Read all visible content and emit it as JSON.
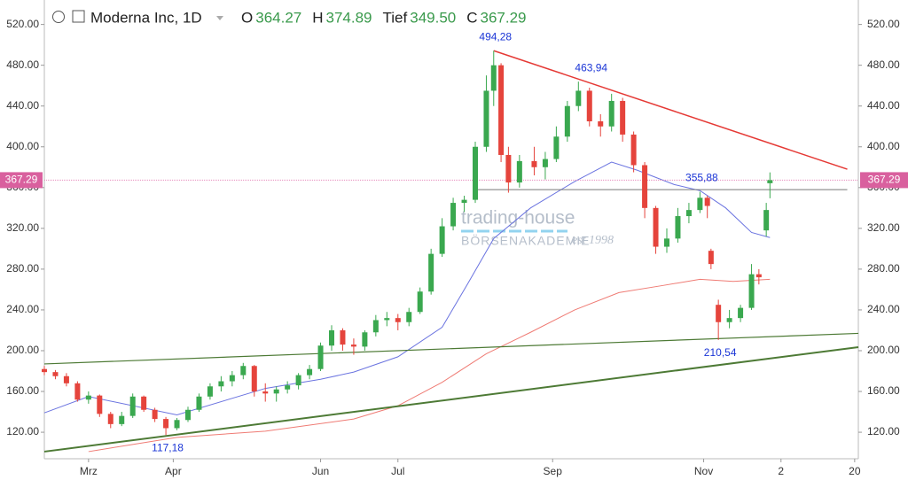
{
  "chart_data": {
    "type": "candlestick",
    "header": {
      "title": "Moderna Inc, 1D",
      "fields": [
        {
          "label": "O",
          "value": "364.27"
        },
        {
          "label": "H",
          "value": "374.89"
        },
        {
          "label": "Tief",
          "value": "349.50"
        },
        {
          "label": "C",
          "value": "367.29"
        }
      ]
    },
    "last_price_label": "367.29",
    "watermark": {
      "brand": "trading-house",
      "sub": "BÖRSENAKADEMIE",
      "est": "est 1998"
    },
    "xlim": [
      0,
      221
    ],
    "xticks": [
      {
        "value": 12,
        "label": "Mrz"
      },
      {
        "value": 35,
        "label": "Apr"
      },
      {
        "value": 75,
        "label": "Jun"
      },
      {
        "value": 96,
        "label": "Jul"
      },
      {
        "value": 138,
        "label": "Sep"
      },
      {
        "value": 179,
        "label": "Nov"
      },
      {
        "value": 200,
        "label": "2"
      },
      {
        "value": 220,
        "label": "20"
      }
    ],
    "ylim": [
      94,
      544
    ],
    "yticks": [
      {
        "value": 120,
        "label": "120.00"
      },
      {
        "value": 160,
        "label": "160.00"
      },
      {
        "value": 200,
        "label": "200.00"
      },
      {
        "value": 240,
        "label": "240.00"
      },
      {
        "value": 280,
        "label": "280.00"
      },
      {
        "value": 320,
        "label": "320.00"
      },
      {
        "value": 360,
        "label": "360.00"
      },
      {
        "value": 400,
        "label": "400.00"
      },
      {
        "value": 440,
        "label": "440.00"
      },
      {
        "value": 480,
        "label": "480.00"
      },
      {
        "value": 520,
        "label": "520.00"
      }
    ],
    "up_color": "#3aa84f",
    "down_color": "#e5443c",
    "x": [
      0,
      3,
      6,
      9,
      12,
      15,
      18,
      21,
      24,
      27,
      30,
      33,
      36,
      39,
      42,
      45,
      48,
      51,
      54,
      57,
      60,
      63,
      66,
      69,
      72,
      75,
      78,
      81,
      84,
      87,
      90,
      93,
      96,
      99,
      102,
      105,
      108,
      111,
      114,
      117,
      120,
      122,
      124,
      126,
      129,
      133,
      136,
      139,
      142,
      145,
      148,
      151,
      154,
      157,
      160,
      163,
      166,
      169,
      172,
      175,
      178,
      180,
      181,
      183,
      186,
      189,
      192,
      194,
      196,
      197
    ],
    "open": [
      182,
      179,
      175,
      168,
      152,
      156,
      138,
      128,
      136,
      155,
      142,
      133,
      124,
      132,
      142,
      155,
      165,
      170,
      176,
      185,
      160,
      158,
      162,
      166,
      176,
      182,
      205,
      220,
      206,
      204,
      218,
      230,
      232,
      228,
      238,
      258,
      295,
      322,
      345,
      348,
      400,
      455,
      480,
      392,
      365,
      386,
      380,
      388,
      410,
      440,
      455,
      425,
      420,
      445,
      412,
      382,
      340,
      302,
      310,
      332,
      338,
      350,
      298,
      245,
      228,
      232,
      242,
      275,
      318,
      364.27
    ],
    "high": [
      185,
      181,
      178,
      170,
      160,
      157,
      140,
      140,
      158,
      156,
      144,
      135,
      134,
      145,
      158,
      168,
      175,
      180,
      188,
      186,
      168,
      165,
      170,
      178,
      186,
      208,
      225,
      222,
      212,
      220,
      235,
      238,
      236,
      242,
      262,
      300,
      330,
      350,
      352,
      405,
      470,
      494.28,
      482,
      400,
      392,
      400,
      395,
      420,
      445,
      463.94,
      458,
      432,
      452,
      448,
      415,
      385,
      342,
      320,
      340,
      345,
      355.88,
      352,
      300,
      250,
      240,
      245,
      285,
      280,
      345,
      374.89
    ],
    "low": [
      176,
      172,
      165,
      150,
      148,
      135,
      124,
      126,
      134,
      140,
      130,
      117.18,
      122,
      130,
      140,
      152,
      160,
      165,
      172,
      155,
      150,
      150,
      158,
      162,
      172,
      180,
      200,
      200,
      196,
      200,
      214,
      224,
      220,
      224,
      236,
      255,
      292,
      318,
      336,
      345,
      395,
      440,
      385,
      355,
      360,
      372,
      368,
      385,
      405,
      435,
      420,
      410,
      415,
      405,
      375,
      330,
      295,
      296,
      306,
      325,
      335,
      330,
      280,
      210.54,
      222,
      228,
      240,
      265,
      312,
      349.5
    ],
    "close": [
      179,
      175,
      168,
      152,
      156,
      138,
      128,
      136,
      155,
      142,
      133,
      124,
      132,
      142,
      155,
      165,
      170,
      176,
      185,
      160,
      158,
      162,
      166,
      176,
      182,
      205,
      220,
      206,
      204,
      218,
      230,
      232,
      228,
      238,
      258,
      295,
      322,
      345,
      348,
      400,
      455,
      480,
      392,
      365,
      386,
      380,
      388,
      410,
      440,
      455,
      425,
      420,
      445,
      412,
      382,
      340,
      302,
      310,
      332,
      338,
      350,
      342,
      285,
      228,
      232,
      242,
      275,
      272,
      338,
      367.29
    ],
    "moving_averages": [
      {
        "color": "#6b74e0",
        "x": [
          0,
          12,
          36,
          60,
          75,
          84,
          96,
          108,
          115,
          122,
          132,
          144,
          154,
          161,
          171,
          178,
          185,
          192,
          197
        ],
        "values": [
          139,
          155,
          137,
          163,
          172,
          179,
          194,
          223,
          266,
          310,
          340,
          366,
          385,
          377,
          363,
          357,
          340,
          316,
          311
        ]
      },
      {
        "color": "#ef7b74",
        "x": [
          12,
          36,
          60,
          84,
          96,
          108,
          120,
          132,
          144,
          156,
          168,
          178,
          187,
          197
        ],
        "values": [
          101,
          115,
          121,
          133,
          146,
          169,
          197,
          218,
          240,
          257,
          264,
          270,
          268,
          270
        ]
      }
    ],
    "lines": [
      {
        "color": "#e53935",
        "width": 1.5,
        "x": [
          122,
          218
        ],
        "values": [
          494.28,
          378
        ]
      },
      {
        "color": "#4d7a35",
        "width": 1.2,
        "x": [
          0,
          221
        ],
        "values": [
          187,
          217
        ]
      },
      {
        "color": "#4d7a35",
        "width": 2,
        "x": [
          0,
          221
        ],
        "values": [
          101,
          203.5
        ]
      },
      {
        "color": "#777",
        "width": 1,
        "x": [
          117,
          218
        ],
        "values": [
          358,
          358
        ]
      }
    ],
    "annotations": [
      {
        "label": "494,28",
        "value": 494.28,
        "x": 122,
        "pos": "above"
      },
      {
        "label": "463,94",
        "value": 463.94,
        "x": 148,
        "pos": "above"
      },
      {
        "label": "355,88",
        "value": 355.88,
        "x": 178,
        "pos": "above"
      },
      {
        "label": "210,54",
        "value": 210.54,
        "x": 183,
        "pos": "below"
      },
      {
        "label": "117,18",
        "value": 117.18,
        "x": 33,
        "pos": "below"
      }
    ]
  }
}
